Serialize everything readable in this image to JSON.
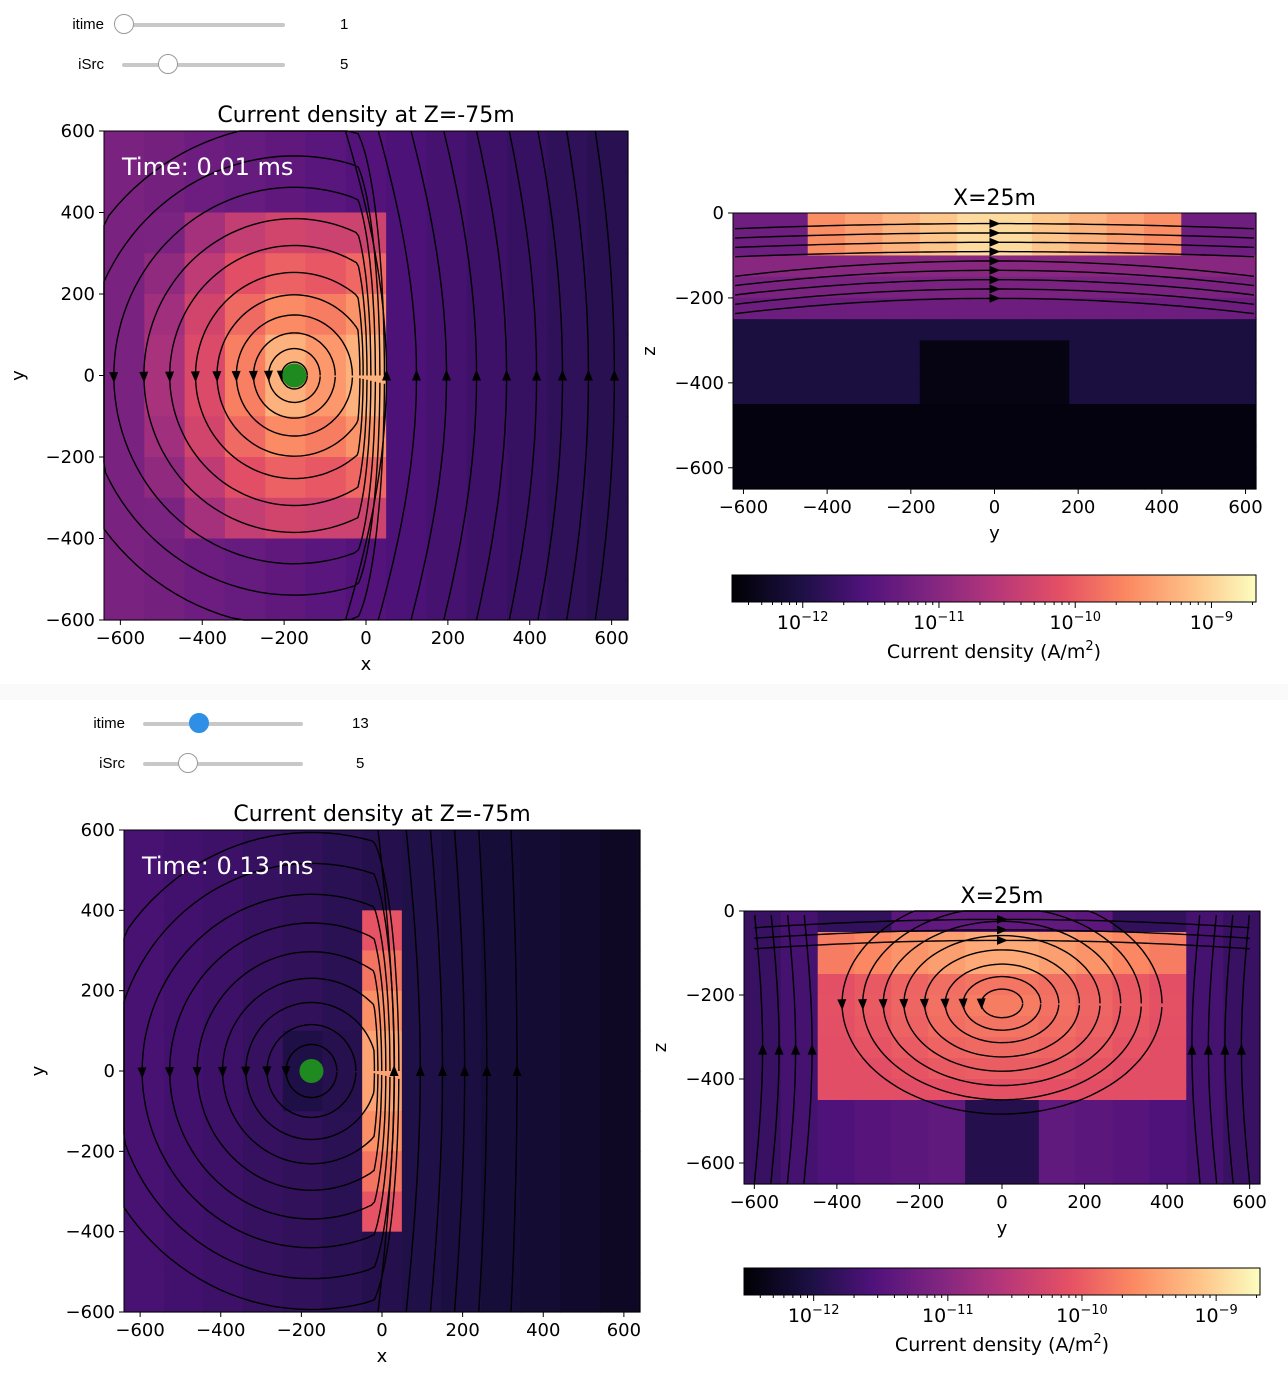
{
  "panels": [
    {
      "widgets": [
        {
          "label": "itime",
          "value": "1",
          "fraction": 0.0,
          "active": false
        },
        {
          "label": "iSrc",
          "value": "5",
          "fraction": 0.28,
          "active": false
        }
      ],
      "plan_chart": {
        "title": "Current density at Z=-75m",
        "time_label": "Time: 0.01 ms",
        "xlabel": "x",
        "ylabel": "y",
        "xlim": [
          -640,
          640
        ],
        "ylim": [
          -600,
          600
        ],
        "xticks": [
          "−600",
          "−400",
          "−200",
          "0",
          "200",
          "400",
          "600"
        ],
        "yticks": [
          "600",
          "400",
          "200",
          "0",
          "−200",
          "−400",
          "−600"
        ],
        "source": {
          "x": -175,
          "y": 0
        },
        "source_color": "#1f8a1f"
      },
      "section_chart": {
        "title": "X=25m",
        "xlabel": "y",
        "ylabel": "z",
        "xlim": [
          -625,
          625
        ],
        "ylim": [
          -650,
          0
        ],
        "xticks": [
          "−600",
          "−400",
          "−200",
          "0",
          "200",
          "400",
          "600"
        ],
        "yticks": [
          "0",
          "−200",
          "−400",
          "−600"
        ]
      },
      "colorbar": {
        "label_prefix": "Current density (A/m",
        "label_sup": "2",
        "label_suffix": ")",
        "ticks": [
          {
            "base": "10",
            "exp": "−12"
          },
          {
            "base": "10",
            "exp": "−11"
          },
          {
            "base": "10",
            "exp": "−10"
          },
          {
            "base": "10",
            "exp": "−9"
          }
        ]
      }
    },
    {
      "widgets": [
        {
          "label": "itime",
          "value": "13",
          "fraction": 0.35,
          "active": true
        },
        {
          "label": "iSrc",
          "value": "5",
          "fraction": 0.28,
          "active": false
        }
      ],
      "plan_chart": {
        "title": "Current density at Z=-75m",
        "time_label": "Time: 0.13 ms",
        "xlabel": "x",
        "ylabel": "y",
        "xlim": [
          -640,
          640
        ],
        "ylim": [
          -600,
          600
        ],
        "xticks": [
          "−600",
          "−400",
          "−200",
          "0",
          "200",
          "400",
          "600"
        ],
        "yticks": [
          "600",
          "400",
          "200",
          "0",
          "−200",
          "−400",
          "−600"
        ],
        "source": {
          "x": -175,
          "y": 0
        },
        "source_color": "#1f8a1f"
      },
      "section_chart": {
        "title": "X=25m",
        "xlabel": "y",
        "ylabel": "z",
        "xlim": [
          -625,
          625
        ],
        "ylim": [
          -650,
          0
        ],
        "xticks": [
          "−600",
          "−400",
          "−200",
          "0",
          "200",
          "400",
          "600"
        ],
        "yticks": [
          "0",
          "−200",
          "−400",
          "−600"
        ]
      },
      "colorbar": {
        "label_prefix": "Current density (A/m",
        "label_sup": "2",
        "label_suffix": ")",
        "ticks": [
          {
            "base": "10",
            "exp": "−12"
          },
          {
            "base": "10",
            "exp": "−11"
          },
          {
            "base": "10",
            "exp": "−10"
          },
          {
            "base": "10",
            "exp": "−9"
          }
        ]
      }
    }
  ],
  "chart_data": [
    {
      "type": "heatmap",
      "title": "Current density at Z=-75m",
      "annotation": "Time: 0.01 ms",
      "xlabel": "x",
      "ylabel": "y",
      "xlim": [
        -640,
        640
      ],
      "ylim": [
        -600,
        600
      ],
      "xticks": [
        -600,
        -400,
        -200,
        0,
        200,
        400,
        600
      ],
      "yticks": [
        -600,
        -400,
        -200,
        0,
        200,
        400,
        600
      ],
      "overlay": "streamlines",
      "source_marker": {
        "x": -175,
        "y": 0,
        "color": "green"
      },
      "colorbar_label": "Current density (A/m^2)",
      "colorscale": "log, magma",
      "colorbar_ticks": [
        "1e-12",
        "1e-11",
        "1e-10",
        "1e-9"
      ]
    },
    {
      "type": "heatmap",
      "title": "X=25m",
      "xlabel": "y",
      "ylabel": "z",
      "xlim": [
        -625,
        625
      ],
      "ylim": [
        -650,
        0
      ],
      "xticks": [
        -600,
        -400,
        -200,
        0,
        200,
        400,
        600
      ],
      "yticks": [
        -600,
        -400,
        -200,
        0
      ],
      "overlay": "streamlines"
    },
    {
      "type": "heatmap",
      "title": "Current density at Z=-75m",
      "annotation": "Time: 0.13 ms",
      "xlabel": "x",
      "ylabel": "y",
      "xlim": [
        -640,
        640
      ],
      "ylim": [
        -600,
        600
      ],
      "xticks": [
        -600,
        -400,
        -200,
        0,
        200,
        400,
        600
      ],
      "yticks": [
        -600,
        -400,
        -200,
        0,
        200,
        400,
        600
      ],
      "overlay": "streamlines",
      "source_marker": {
        "x": -175,
        "y": 0,
        "color": "green"
      },
      "colorbar_label": "Current density (A/m^2)",
      "colorscale": "log, magma",
      "colorbar_ticks": [
        "1e-12",
        "1e-11",
        "1e-10",
        "1e-9"
      ]
    },
    {
      "type": "heatmap",
      "title": "X=25m",
      "xlabel": "y",
      "ylabel": "z",
      "xlim": [
        -625,
        625
      ],
      "ylim": [
        -650,
        0
      ],
      "xticks": [
        -600,
        -400,
        -200,
        0,
        200,
        400,
        600
      ],
      "yticks": [
        -600,
        -400,
        -200,
        0
      ],
      "overlay": "streamlines"
    }
  ]
}
